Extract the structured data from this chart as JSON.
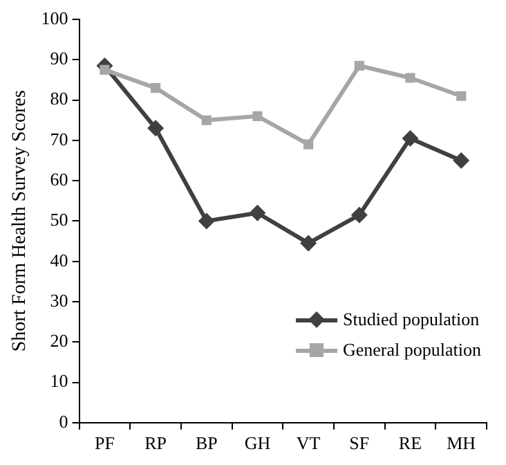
{
  "chart_data": {
    "type": "line",
    "ylabel": "Short Form Health Survey Scores",
    "categories": [
      "PF",
      "RP",
      "BP",
      "GH",
      "VT",
      "SF",
      "RE",
      "MH"
    ],
    "series": [
      {
        "name": "Studied population",
        "color": "#404040",
        "marker": "diamond",
        "values": [
          88.5,
          73,
          50,
          52,
          44.5,
          51.5,
          70.5,
          65
        ]
      },
      {
        "name": "General population",
        "color": "#a6a6a6",
        "marker": "square",
        "values": [
          87.5,
          83,
          75,
          76,
          69,
          88.5,
          85.5,
          81
        ]
      }
    ],
    "ylim": [
      0,
      100
    ],
    "yticks": [
      0,
      10,
      20,
      30,
      40,
      50,
      60,
      70,
      80,
      90,
      100
    ],
    "grid": false,
    "legend": "bottom right",
    "line_style": "solid"
  }
}
